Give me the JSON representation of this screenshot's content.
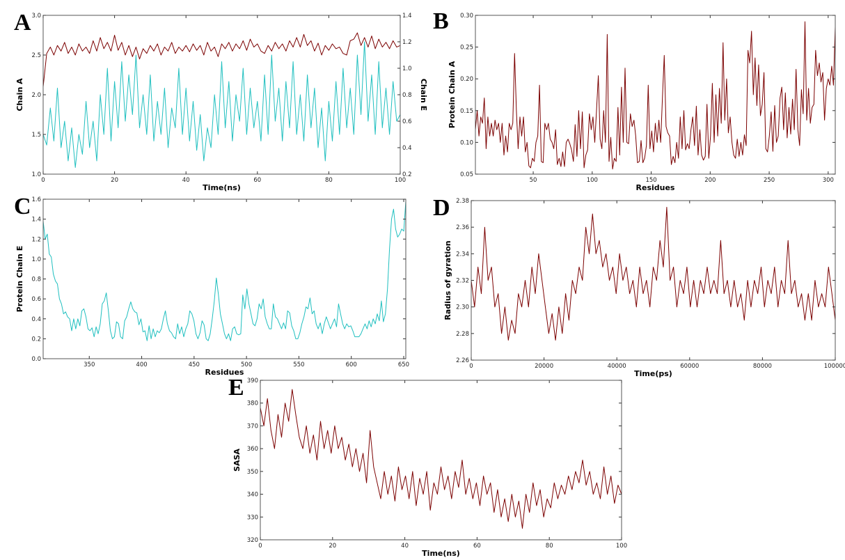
{
  "chart_data": [
    {
      "panel_label": "A",
      "type": "line",
      "xlabel": "Time(ns)",
      "ylabel": "Chain A",
      "y2label": "Chain E",
      "xlim": [
        0,
        100
      ],
      "ylim": [
        1.0,
        3.0
      ],
      "y2lim": [
        0.2,
        1.4
      ],
      "xticks": [
        "0",
        "20",
        "40",
        "60",
        "80",
        "100"
      ],
      "yticks": [
        "1.0",
        "1.5",
        "2.0",
        "2.5",
        "3.0"
      ],
      "y2ticks": [
        "0.2",
        "0.4",
        "0.6",
        "0.8",
        "1.0",
        "1.2",
        "1.4"
      ],
      "grid": false,
      "series": [
        {
          "axis": "left",
          "color": "#7b0000",
          "x_range": [
            0,
            100
          ],
          "values": [
            2.1,
            2.52,
            2.6,
            2.5,
            2.62,
            2.55,
            2.66,
            2.52,
            2.6,
            2.5,
            2.64,
            2.55,
            2.6,
            2.52,
            2.68,
            2.55,
            2.72,
            2.58,
            2.66,
            2.55,
            2.75,
            2.56,
            2.66,
            2.5,
            2.62,
            2.48,
            2.6,
            2.45,
            2.58,
            2.52,
            2.62,
            2.55,
            2.64,
            2.5,
            2.6,
            2.55,
            2.66,
            2.52,
            2.6,
            2.55,
            2.62,
            2.54,
            2.64,
            2.56,
            2.62,
            2.5,
            2.66,
            2.55,
            2.6,
            2.48,
            2.64,
            2.58,
            2.66,
            2.55,
            2.64,
            2.58,
            2.68,
            2.56,
            2.7,
            2.6,
            2.64,
            2.55,
            2.52,
            2.62,
            2.55,
            2.66,
            2.58,
            2.64,
            2.55,
            2.68,
            2.6,
            2.72,
            2.6,
            2.76,
            2.62,
            2.68,
            2.55,
            2.65,
            2.5,
            2.62,
            2.56,
            2.64,
            2.58,
            2.6,
            2.52,
            2.5,
            2.68,
            2.7,
            2.78,
            2.62,
            2.72,
            2.6,
            2.74,
            2.58,
            2.7,
            2.6,
            2.66,
            2.58,
            2.68,
            2.6,
            2.62
          ]
        },
        {
          "axis": "right",
          "color": "#1fbfbf",
          "x_range": [
            0,
            100
          ],
          "values": [
            0.5,
            0.42,
            0.7,
            0.45,
            0.85,
            0.4,
            0.6,
            0.3,
            0.55,
            0.25,
            0.5,
            0.35,
            0.75,
            0.4,
            0.6,
            0.3,
            0.8,
            0.5,
            1.0,
            0.45,
            0.9,
            0.55,
            1.05,
            0.6,
            0.95,
            0.65,
            1.1,
            0.55,
            0.8,
            0.5,
            0.95,
            0.45,
            0.75,
            0.5,
            0.85,
            0.4,
            0.7,
            0.55,
            1.0,
            0.5,
            0.85,
            0.45,
            0.75,
            0.38,
            0.65,
            0.3,
            0.55,
            0.4,
            0.8,
            0.5,
            1.05,
            0.55,
            0.9,
            0.45,
            0.8,
            0.6,
            1.0,
            0.5,
            0.85,
            0.55,
            0.75,
            0.45,
            0.95,
            0.5,
            1.1,
            0.6,
            0.85,
            0.45,
            0.9,
            0.55,
            1.05,
            0.5,
            0.8,
            0.45,
            0.95,
            0.55,
            0.85,
            0.4,
            0.7,
            0.3,
            0.75,
            0.45,
            0.9,
            0.5,
            1.0,
            0.55,
            0.85,
            0.5,
            1.1,
            0.65,
            1.2,
            0.6,
            0.95,
            0.5,
            1.05,
            0.55,
            0.85,
            0.5,
            0.9,
            0.6,
            0.65
          ]
        }
      ]
    },
    {
      "panel_label": "B",
      "type": "line",
      "xlabel": "Residues",
      "ylabel": "Protein Chain A",
      "xlim": [
        1,
        306
      ],
      "ylim": [
        0.05,
        0.3
      ],
      "xticks": [
        "50",
        "100",
        "150",
        "200",
        "250",
        "300"
      ],
      "yticks": [
        "0.05",
        "0.10",
        "0.15",
        "0.20",
        "0.25",
        "0.30"
      ],
      "grid": false,
      "series": [
        {
          "axis": "left",
          "color": "#7b0000",
          "x_range": [
            1,
            306
          ],
          "values": [
            0.12,
            0.15,
            0.11,
            0.14,
            0.13,
            0.17,
            0.09,
            0.14,
            0.11,
            0.13,
            0.11,
            0.135,
            0.12,
            0.13,
            0.1,
            0.13,
            0.08,
            0.11,
            0.085,
            0.13,
            0.12,
            0.13,
            0.24,
            0.15,
            0.09,
            0.14,
            0.11,
            0.14,
            0.085,
            0.1,
            0.063,
            0.06,
            0.075,
            0.07,
            0.1,
            0.11,
            0.19,
            0.07,
            0.068,
            0.13,
            0.12,
            0.13,
            0.105,
            0.1,
            0.09,
            0.12,
            0.065,
            0.075,
            0.062,
            0.085,
            0.062,
            0.1,
            0.105,
            0.098,
            0.088,
            0.07,
            0.128,
            0.078,
            0.15,
            0.09,
            0.148,
            0.06,
            0.08,
            0.088,
            0.145,
            0.12,
            0.14,
            0.1,
            0.15,
            0.205,
            0.105,
            0.09,
            0.15,
            0.1,
            0.27,
            0.07,
            0.108,
            0.058,
            0.075,
            0.07,
            0.155,
            0.08,
            0.187,
            0.1,
            0.217,
            0.1,
            0.098,
            0.145,
            0.125,
            0.135,
            0.11,
            0.068,
            0.07,
            0.103,
            0.068,
            0.075,
            0.095,
            0.19,
            0.09,
            0.118,
            0.085,
            0.13,
            0.1,
            0.135,
            0.1,
            0.17,
            0.237,
            0.125,
            0.115,
            0.11,
            0.065,
            0.078,
            0.068,
            0.1,
            0.075,
            0.14,
            0.09,
            0.15,
            0.088,
            0.098,
            0.09,
            0.12,
            0.14,
            0.095,
            0.157,
            0.08,
            0.12,
            0.08,
            0.072,
            0.078,
            0.16,
            0.075,
            0.11,
            0.193,
            0.1,
            0.175,
            0.11,
            0.185,
            0.13,
            0.257,
            0.135,
            0.2,
            0.115,
            0.14,
            0.1,
            0.08,
            0.075,
            0.105,
            0.078,
            0.1,
            0.08,
            0.112,
            0.095,
            0.245,
            0.225,
            0.275,
            0.175,
            0.233,
            0.158,
            0.222,
            0.142,
            0.16,
            0.21,
            0.09,
            0.085,
            0.11,
            0.148,
            0.086,
            0.158,
            0.1,
            0.11,
            0.17,
            0.187,
            0.12,
            0.178,
            0.107,
            0.155,
            0.113,
            0.168,
            0.12,
            0.215,
            0.12,
            0.095,
            0.183,
            0.145,
            0.29,
            0.135,
            0.185,
            0.13,
            0.155,
            0.16,
            0.245,
            0.205,
            0.225,
            0.195,
            0.21,
            0.135,
            0.185,
            0.2,
            0.19,
            0.22,
            0.19,
            0.282
          ]
        }
      ]
    },
    {
      "panel_label": "C",
      "type": "line",
      "xlabel": "Residues",
      "ylabel": "Protein Chain E",
      "xlim": [
        306,
        652
      ],
      "ylim": [
        0.0,
        1.6
      ],
      "xticks": [
        "350",
        "400",
        "450",
        "500",
        "550",
        "600",
        "650"
      ],
      "yticks": [
        "0.0",
        "0.2",
        "0.4",
        "0.6",
        "0.8",
        "1.0",
        "1.2",
        "1.4",
        "1.6"
      ],
      "grid": false,
      "series": [
        {
          "axis": "left",
          "color": "#1fbfbf",
          "x_range": [
            306,
            652
          ],
          "values": [
            1.38,
            1.2,
            1.25,
            1.05,
            1.02,
            0.85,
            0.78,
            0.75,
            0.6,
            0.55,
            0.45,
            0.47,
            0.42,
            0.4,
            0.28,
            0.4,
            0.3,
            0.4,
            0.33,
            0.48,
            0.5,
            0.42,
            0.3,
            0.28,
            0.31,
            0.22,
            0.32,
            0.25,
            0.35,
            0.55,
            0.58,
            0.66,
            0.48,
            0.28,
            0.2,
            0.22,
            0.37,
            0.35,
            0.22,
            0.2,
            0.38,
            0.42,
            0.5,
            0.57,
            0.5,
            0.47,
            0.46,
            0.34,
            0.4,
            0.27,
            0.28,
            0.18,
            0.33,
            0.2,
            0.3,
            0.22,
            0.28,
            0.26,
            0.3,
            0.4,
            0.48,
            0.35,
            0.28,
            0.26,
            0.22,
            0.2,
            0.35,
            0.25,
            0.32,
            0.22,
            0.3,
            0.35,
            0.48,
            0.45,
            0.38,
            0.25,
            0.2,
            0.26,
            0.38,
            0.34,
            0.2,
            0.18,
            0.25,
            0.4,
            0.58,
            0.81,
            0.65,
            0.45,
            0.35,
            0.25,
            0.2,
            0.25,
            0.18,
            0.3,
            0.32,
            0.25,
            0.24,
            0.25,
            0.64,
            0.5,
            0.7,
            0.55,
            0.45,
            0.35,
            0.33,
            0.4,
            0.55,
            0.5,
            0.6,
            0.42,
            0.35,
            0.3,
            0.3,
            0.55,
            0.42,
            0.4,
            0.35,
            0.3,
            0.36,
            0.3,
            0.48,
            0.46,
            0.33,
            0.28,
            0.2,
            0.2,
            0.26,
            0.35,
            0.42,
            0.52,
            0.5,
            0.61,
            0.45,
            0.48,
            0.35,
            0.3,
            0.36,
            0.25,
            0.35,
            0.42,
            0.36,
            0.3,
            0.35,
            0.4,
            0.32,
            0.55,
            0.45,
            0.35,
            0.3,
            0.35,
            0.32,
            0.33,
            0.28,
            0.22,
            0.22,
            0.22,
            0.25,
            0.3,
            0.35,
            0.3,
            0.38,
            0.32,
            0.4,
            0.35,
            0.45,
            0.38,
            0.58,
            0.37,
            0.45,
            0.7,
            1.1,
            1.4,
            1.5,
            1.3,
            1.22,
            1.25,
            1.3,
            1.28,
            1.58
          ]
        }
      ]
    },
    {
      "panel_label": "D",
      "type": "line",
      "xlabel": "Time(ps)",
      "ylabel": "Radius of gyration",
      "xlim": [
        0,
        100000
      ],
      "ylim": [
        2.26,
        2.38
      ],
      "xticks": [
        "0",
        "20000",
        "40000",
        "60000",
        "80000",
        "100000"
      ],
      "yticks": [
        "2.26",
        "2.28",
        "2.30",
        "2.32",
        "2.34",
        "2.36",
        "2.38"
      ],
      "grid": false,
      "series": [
        {
          "axis": "left",
          "color": "#7b0000",
          "x_range": [
            0,
            100000
          ],
          "values": [
            2.32,
            2.3,
            2.33,
            2.31,
            2.36,
            2.32,
            2.33,
            2.3,
            2.31,
            2.28,
            2.3,
            2.275,
            2.29,
            2.28,
            2.31,
            2.3,
            2.32,
            2.3,
            2.33,
            2.31,
            2.34,
            2.32,
            2.3,
            2.28,
            2.295,
            2.275,
            2.3,
            2.28,
            2.31,
            2.29,
            2.32,
            2.31,
            2.33,
            2.32,
            2.36,
            2.34,
            2.37,
            2.34,
            2.35,
            2.33,
            2.34,
            2.32,
            2.33,
            2.31,
            2.34,
            2.32,
            2.33,
            2.31,
            2.32,
            2.3,
            2.33,
            2.31,
            2.32,
            2.3,
            2.33,
            2.32,
            2.35,
            2.33,
            2.375,
            2.32,
            2.33,
            2.3,
            2.32,
            2.31,
            2.33,
            2.3,
            2.32,
            2.3,
            2.32,
            2.31,
            2.33,
            2.31,
            2.32,
            2.31,
            2.35,
            2.31,
            2.32,
            2.3,
            2.32,
            2.3,
            2.31,
            2.29,
            2.32,
            2.3,
            2.32,
            2.31,
            2.33,
            2.3,
            2.32,
            2.31,
            2.33,
            2.3,
            2.32,
            2.31,
            2.35,
            2.31,
            2.32,
            2.3,
            2.31,
            2.29,
            2.31,
            2.29,
            2.32,
            2.3,
            2.31,
            2.3,
            2.33,
            2.31,
            2.29
          ]
        }
      ]
    },
    {
      "panel_label": "E",
      "type": "line",
      "xlabel": "Time(ns)",
      "ylabel": "SASA",
      "xlim": [
        0,
        100
      ],
      "ylim": [
        320,
        390
      ],
      "xticks": [
        "0",
        "20",
        "40",
        "60",
        "80",
        "100"
      ],
      "yticks": [
        "320",
        "330",
        "340",
        "350",
        "360",
        "370",
        "380",
        "390"
      ],
      "grid": false,
      "series": [
        {
          "axis": "left",
          "color": "#7b0000",
          "x_range": [
            0,
            100
          ],
          "values": [
            378,
            370,
            382,
            368,
            360,
            375,
            365,
            380,
            372,
            386,
            375,
            365,
            360,
            370,
            358,
            366,
            355,
            372,
            360,
            368,
            358,
            370,
            360,
            365,
            355,
            362,
            352,
            360,
            350,
            358,
            345,
            368,
            352,
            345,
            338,
            350,
            340,
            348,
            337,
            352,
            342,
            348,
            338,
            350,
            335,
            347,
            340,
            350,
            333,
            345,
            340,
            352,
            342,
            348,
            338,
            350,
            343,
            355,
            340,
            347,
            338,
            345,
            335,
            348,
            340,
            345,
            332,
            342,
            330,
            338,
            328,
            340,
            330,
            337,
            325,
            340,
            332,
            345,
            335,
            342,
            330,
            338,
            334,
            345,
            338,
            344,
            340,
            348,
            342,
            350,
            345,
            355,
            344,
            350,
            340,
            345,
            338,
            352,
            340,
            348,
            336,
            344,
            340
          ]
        }
      ]
    }
  ]
}
